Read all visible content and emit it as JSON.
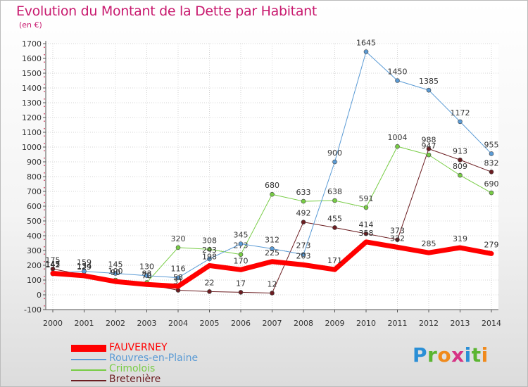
{
  "title": "Evolution du Montant de la Dette par Habitant",
  "subtitle": "(en €)",
  "logo": {
    "text": "Proxiti",
    "letter_colors": [
      "#2a8fd6",
      "#5bb531",
      "#f08a1c",
      "#d63384",
      "#2a8fd6",
      "#5bb531",
      "#f08a1c"
    ]
  },
  "chart_data": {
    "type": "line",
    "title": "Evolution du Montant de la Dette par Habitant",
    "subtitle": "(en €)",
    "xlabel": "",
    "ylabel": "",
    "ylim": [
      -100,
      1700
    ],
    "yticks": [
      -100,
      0,
      100,
      200,
      300,
      400,
      500,
      600,
      700,
      800,
      900,
      1000,
      1100,
      1200,
      1300,
      1400,
      1500,
      1600,
      1700
    ],
    "grid": true,
    "legend_position": "bottom-left",
    "categories": [
      "2000",
      "2001",
      "2002",
      "2003",
      "2004",
      "2005",
      "2006",
      "2007",
      "2008",
      "2009",
      "2010",
      "2011",
      "2012",
      "2013",
      "2014"
    ],
    "series": [
      {
        "name": "Bretenière",
        "color": "#6b1d21",
        "width": 1,
        "marker": true,
        "values": [
          175,
          134,
          90,
          72,
          31,
          22,
          17,
          12,
          492,
          455,
          414,
          373,
          988,
          913,
          832
        ],
        "labels": [
          "175",
          "134",
          "90",
          "72",
          "31",
          "22",
          "17",
          "12",
          "492",
          "455",
          "414",
          "373",
          "988",
          "913",
          "832"
        ]
      },
      {
        "name": "Crimolois",
        "color": "#77cc44",
        "width": 1,
        "marker": true,
        "values": [
          142,
          129,
          100,
          83,
          320,
          308,
          273,
          680,
          633,
          638,
          591,
          1004,
          947,
          809,
          690
        ],
        "labels": [
          "142",
          "129",
          "100",
          "83",
          "320",
          "308",
          "273",
          "680",
          "633",
          "638",
          "591",
          "1004",
          "947",
          "809",
          "690"
        ]
      },
      {
        "name": "Rouvres-en-Plaine",
        "color": "#5b9bd5",
        "width": 1,
        "marker": true,
        "values": [
          147,
          159,
          145,
          130,
          116,
          243,
          345,
          312,
          273,
          900,
          1645,
          1450,
          1385,
          1172,
          955
        ],
        "labels": [
          "147",
          "159",
          "145",
          "130",
          "116",
          "243",
          "345",
          "312",
          "273",
          "900",
          "1645",
          "1450",
          "1385",
          "1172",
          "955"
        ]
      },
      {
        "name": "FAUVERNEY",
        "color": "#ff0000",
        "width": 7,
        "marker": false,
        "values": [
          145,
          129,
          90,
          70,
          58,
          198,
          170,
          225,
          203,
          171,
          358,
          322,
          285,
          319,
          279
        ],
        "labels": [
          "145",
          "129",
          "90",
          "70",
          "58",
          "198",
          "170",
          "225",
          "203",
          "171",
          "358",
          "322",
          "285",
          "319",
          "279"
        ]
      }
    ],
    "legend": [
      {
        "name": "FAUVERNEY",
        "color": "#ff0000",
        "thick": true
      },
      {
        "name": "Rouvres-en-Plaine",
        "color": "#5b9bd5",
        "thick": false
      },
      {
        "name": "Crimolois",
        "color": "#77cc44",
        "thick": false
      },
      {
        "name": "Bretenière",
        "color": "#6b1d21",
        "thick": false
      }
    ]
  }
}
